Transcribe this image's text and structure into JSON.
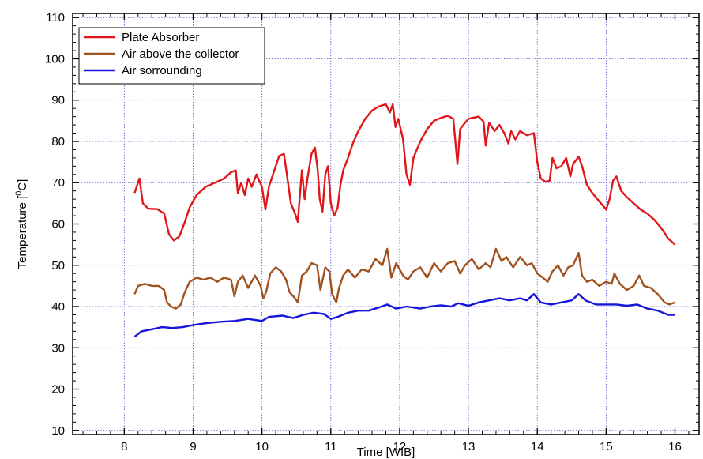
{
  "chart_data": {
    "type": "line",
    "title": "",
    "xlabel": "Time [WIB]",
    "ylabel": {
      "prefix": "Temperature [",
      "sup": "0",
      "suffix": "C]"
    },
    "xlim": [
      7.25,
      16.35
    ],
    "ylim": [
      9,
      111
    ],
    "xticks": [
      8,
      9,
      10,
      11,
      12,
      13,
      14,
      15,
      16
    ],
    "yticks": [
      10,
      20,
      30,
      40,
      50,
      60,
      70,
      80,
      90,
      100,
      110
    ],
    "grid": true,
    "legend_position": "top-left",
    "series": [
      {
        "name": "Plate Absorber",
        "color": "#e0161b",
        "points": [
          [
            8.15,
            67.5
          ],
          [
            8.22,
            71.0
          ],
          [
            8.27,
            65.0
          ],
          [
            8.35,
            63.7
          ],
          [
            8.48,
            63.6
          ],
          [
            8.58,
            62.5
          ],
          [
            8.65,
            57.5
          ],
          [
            8.72,
            56.0
          ],
          [
            8.8,
            57.0
          ],
          [
            8.88,
            60.5
          ],
          [
            8.95,
            64.0
          ],
          [
            9.05,
            67.0
          ],
          [
            9.18,
            69.0
          ],
          [
            9.32,
            70.0
          ],
          [
            9.45,
            71.0
          ],
          [
            9.55,
            72.5
          ],
          [
            9.62,
            73.0
          ],
          [
            9.65,
            67.5
          ],
          [
            9.7,
            70.0
          ],
          [
            9.75,
            67.0
          ],
          [
            9.8,
            71.0
          ],
          [
            9.85,
            69.0
          ],
          [
            9.92,
            72.0
          ],
          [
            10.0,
            69.0
          ],
          [
            10.05,
            63.5
          ],
          [
            10.1,
            69.0
          ],
          [
            10.18,
            73.0
          ],
          [
            10.25,
            76.5
          ],
          [
            10.32,
            77.0
          ],
          [
            10.37,
            71.0
          ],
          [
            10.42,
            65.0
          ],
          [
            10.48,
            62.5
          ],
          [
            10.52,
            60.5
          ],
          [
            10.58,
            73.0
          ],
          [
            10.62,
            66.0
          ],
          [
            10.66,
            71.0
          ],
          [
            10.72,
            77.0
          ],
          [
            10.77,
            78.5
          ],
          [
            10.81,
            73.0
          ],
          [
            10.84,
            66.0
          ],
          [
            10.88,
            63.0
          ],
          [
            10.92,
            72.0
          ],
          [
            10.96,
            74.0
          ],
          [
            11.0,
            65.0
          ],
          [
            11.05,
            62.0
          ],
          [
            11.1,
            64.0
          ],
          [
            11.14,
            69.5
          ],
          [
            11.18,
            73.0
          ],
          [
            11.25,
            76.0
          ],
          [
            11.32,
            79.5
          ],
          [
            11.4,
            82.5
          ],
          [
            11.5,
            85.5
          ],
          [
            11.6,
            87.5
          ],
          [
            11.7,
            88.5
          ],
          [
            11.8,
            89.0
          ],
          [
            11.86,
            87.0
          ],
          [
            11.9,
            89.0
          ],
          [
            11.94,
            83.5
          ],
          [
            11.98,
            85.5
          ],
          [
            12.05,
            80.5
          ],
          [
            12.1,
            72.0
          ],
          [
            12.15,
            69.5
          ],
          [
            12.2,
            76.0
          ],
          [
            12.3,
            80.0
          ],
          [
            12.4,
            83.0
          ],
          [
            12.5,
            85.0
          ],
          [
            12.6,
            85.7
          ],
          [
            12.7,
            86.2
          ],
          [
            12.78,
            85.5
          ],
          [
            12.84,
            74.5
          ],
          [
            12.88,
            83.0
          ],
          [
            12.95,
            84.5
          ],
          [
            13.0,
            85.5
          ],
          [
            13.15,
            86.0
          ],
          [
            13.22,
            84.8
          ],
          [
            13.25,
            79.0
          ],
          [
            13.3,
            84.5
          ],
          [
            13.38,
            82.5
          ],
          [
            13.45,
            84.0
          ],
          [
            13.52,
            82.0
          ],
          [
            13.58,
            79.5
          ],
          [
            13.62,
            82.5
          ],
          [
            13.68,
            80.5
          ],
          [
            13.75,
            82.5
          ],
          [
            13.85,
            81.5
          ],
          [
            13.95,
            82.0
          ],
          [
            14.0,
            75.0
          ],
          [
            14.05,
            71.0
          ],
          [
            14.12,
            70.2
          ],
          [
            14.18,
            70.5
          ],
          [
            14.22,
            76.0
          ],
          [
            14.28,
            73.5
          ],
          [
            14.35,
            74.0
          ],
          [
            14.42,
            76.0
          ],
          [
            14.48,
            71.5
          ],
          [
            14.52,
            74.5
          ],
          [
            14.6,
            76.3
          ],
          [
            14.65,
            74.0
          ],
          [
            14.72,
            69.5
          ],
          [
            14.8,
            67.5
          ],
          [
            14.9,
            65.5
          ],
          [
            15.0,
            63.5
          ],
          [
            15.05,
            66.0
          ],
          [
            15.1,
            70.5
          ],
          [
            15.15,
            71.5
          ],
          [
            15.22,
            68.0
          ],
          [
            15.3,
            66.5
          ],
          [
            15.4,
            65.0
          ],
          [
            15.5,
            63.5
          ],
          [
            15.6,
            62.5
          ],
          [
            15.7,
            61.0
          ],
          [
            15.8,
            59.0
          ],
          [
            15.9,
            56.5
          ],
          [
            16.0,
            55.0
          ]
        ]
      },
      {
        "name": "Air above the collector",
        "color": "#a0521e",
        "points": [
          [
            8.15,
            43.0
          ],
          [
            8.2,
            45.0
          ],
          [
            8.3,
            45.5
          ],
          [
            8.4,
            45.0
          ],
          [
            8.5,
            45.0
          ],
          [
            8.58,
            44.0
          ],
          [
            8.62,
            41.0
          ],
          [
            8.68,
            40.0
          ],
          [
            8.75,
            39.5
          ],
          [
            8.82,
            40.5
          ],
          [
            8.88,
            43.5
          ],
          [
            8.95,
            46.0
          ],
          [
            9.05,
            47.0
          ],
          [
            9.15,
            46.5
          ],
          [
            9.25,
            47.0
          ],
          [
            9.35,
            46.0
          ],
          [
            9.45,
            47.0
          ],
          [
            9.55,
            46.5
          ],
          [
            9.6,
            42.5
          ],
          [
            9.65,
            46.0
          ],
          [
            9.72,
            47.5
          ],
          [
            9.8,
            44.5
          ],
          [
            9.9,
            47.5
          ],
          [
            9.98,
            45.0
          ],
          [
            10.02,
            42.0
          ],
          [
            10.06,
            43.5
          ],
          [
            10.12,
            48.0
          ],
          [
            10.2,
            49.5
          ],
          [
            10.28,
            48.5
          ],
          [
            10.35,
            46.5
          ],
          [
            10.4,
            43.5
          ],
          [
            10.48,
            42.0
          ],
          [
            10.52,
            41.0
          ],
          [
            10.58,
            47.5
          ],
          [
            10.65,
            48.5
          ],
          [
            10.72,
            50.5
          ],
          [
            10.8,
            50.0
          ],
          [
            10.85,
            44.0
          ],
          [
            10.92,
            49.5
          ],
          [
            10.98,
            48.5
          ],
          [
            11.02,
            43.0
          ],
          [
            11.08,
            41.0
          ],
          [
            11.12,
            44.5
          ],
          [
            11.18,
            47.5
          ],
          [
            11.25,
            49.0
          ],
          [
            11.35,
            47.0
          ],
          [
            11.45,
            49.0
          ],
          [
            11.55,
            48.5
          ],
          [
            11.65,
            51.5
          ],
          [
            11.75,
            50.0
          ],
          [
            11.82,
            54.0
          ],
          [
            11.88,
            47.0
          ],
          [
            11.95,
            50.5
          ],
          [
            12.05,
            47.5
          ],
          [
            12.12,
            46.5
          ],
          [
            12.2,
            48.5
          ],
          [
            12.3,
            49.5
          ],
          [
            12.4,
            47.0
          ],
          [
            12.5,
            50.5
          ],
          [
            12.6,
            48.5
          ],
          [
            12.7,
            50.5
          ],
          [
            12.8,
            51.0
          ],
          [
            12.88,
            48.0
          ],
          [
            12.95,
            50.0
          ],
          [
            13.05,
            51.5
          ],
          [
            13.15,
            49.0
          ],
          [
            13.25,
            50.5
          ],
          [
            13.32,
            49.5
          ],
          [
            13.4,
            54.0
          ],
          [
            13.48,
            51.0
          ],
          [
            13.55,
            52.0
          ],
          [
            13.65,
            49.5
          ],
          [
            13.75,
            52.0
          ],
          [
            13.85,
            50.0
          ],
          [
            13.92,
            50.5
          ],
          [
            14.0,
            48.0
          ],
          [
            14.08,
            47.0
          ],
          [
            14.15,
            46.0
          ],
          [
            14.22,
            48.5
          ],
          [
            14.3,
            50.0
          ],
          [
            14.38,
            47.5
          ],
          [
            14.45,
            49.5
          ],
          [
            14.52,
            50.0
          ],
          [
            14.6,
            53.0
          ],
          [
            14.65,
            47.5
          ],
          [
            14.72,
            46.0
          ],
          [
            14.8,
            46.5
          ],
          [
            14.9,
            45.0
          ],
          [
            15.0,
            46.0
          ],
          [
            15.08,
            45.5
          ],
          [
            15.12,
            48.0
          ],
          [
            15.2,
            45.5
          ],
          [
            15.3,
            44.0
          ],
          [
            15.4,
            45.0
          ],
          [
            15.48,
            47.5
          ],
          [
            15.55,
            45.0
          ],
          [
            15.65,
            44.5
          ],
          [
            15.75,
            43.0
          ],
          [
            15.85,
            41.0
          ],
          [
            15.92,
            40.5
          ],
          [
            16.0,
            41.0
          ]
        ]
      },
      {
        "name": "Air sorrounding",
        "color": "#1414dc",
        "points": [
          [
            8.15,
            32.7
          ],
          [
            8.25,
            34.0
          ],
          [
            8.4,
            34.5
          ],
          [
            8.55,
            35.0
          ],
          [
            8.7,
            34.8
          ],
          [
            8.85,
            35.0
          ],
          [
            9.0,
            35.5
          ],
          [
            9.2,
            36.0
          ],
          [
            9.4,
            36.3
          ],
          [
            9.6,
            36.5
          ],
          [
            9.8,
            37.0
          ],
          [
            10.0,
            36.5
          ],
          [
            10.1,
            37.5
          ],
          [
            10.3,
            37.8
          ],
          [
            10.45,
            37.2
          ],
          [
            10.6,
            38.0
          ],
          [
            10.75,
            38.5
          ],
          [
            10.9,
            38.2
          ],
          [
            11.0,
            37.0
          ],
          [
            11.1,
            37.5
          ],
          [
            11.25,
            38.5
          ],
          [
            11.4,
            39.0
          ],
          [
            11.55,
            39.0
          ],
          [
            11.7,
            39.8
          ],
          [
            11.82,
            40.5
          ],
          [
            11.95,
            39.5
          ],
          [
            12.1,
            40.0
          ],
          [
            12.3,
            39.5
          ],
          [
            12.45,
            40.0
          ],
          [
            12.6,
            40.3
          ],
          [
            12.75,
            40.0
          ],
          [
            12.85,
            40.8
          ],
          [
            13.0,
            40.2
          ],
          [
            13.15,
            41.0
          ],
          [
            13.3,
            41.5
          ],
          [
            13.45,
            42.0
          ],
          [
            13.6,
            41.5
          ],
          [
            13.75,
            42.0
          ],
          [
            13.85,
            41.5
          ],
          [
            13.95,
            43.0
          ],
          [
            14.05,
            41.0
          ],
          [
            14.2,
            40.5
          ],
          [
            14.35,
            41.0
          ],
          [
            14.5,
            41.5
          ],
          [
            14.6,
            43.0
          ],
          [
            14.7,
            41.5
          ],
          [
            14.85,
            40.5
          ],
          [
            15.0,
            40.5
          ],
          [
            15.15,
            40.5
          ],
          [
            15.3,
            40.2
          ],
          [
            15.45,
            40.5
          ],
          [
            15.6,
            39.5
          ],
          [
            15.75,
            39.0
          ],
          [
            15.9,
            38.0
          ],
          [
            16.0,
            38.0
          ]
        ]
      }
    ]
  }
}
